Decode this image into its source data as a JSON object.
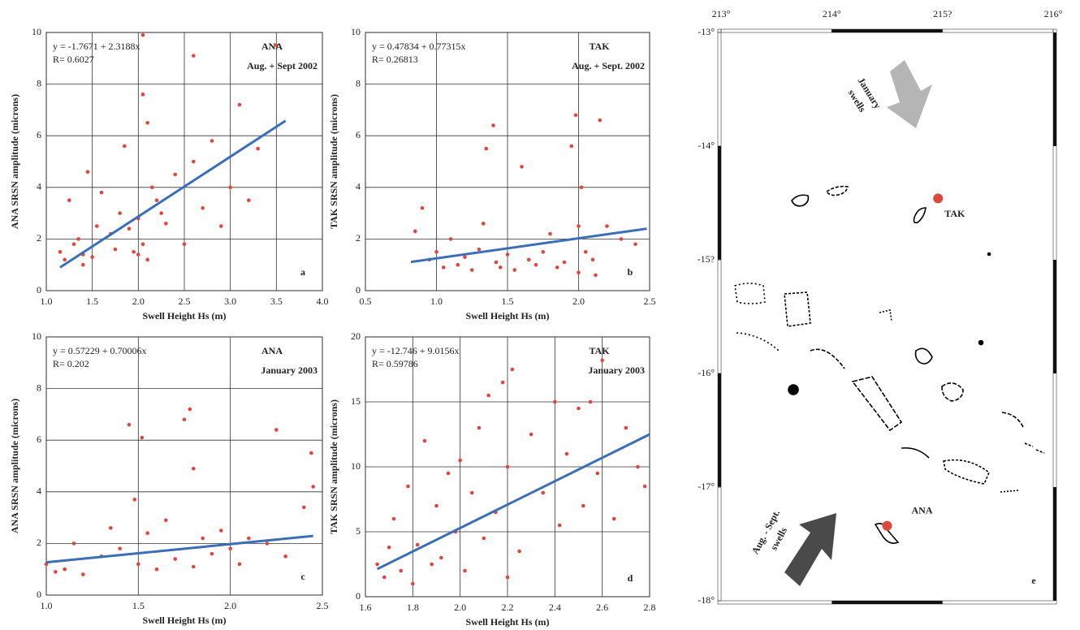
{
  "chart_data": [
    {
      "type": "scatter",
      "equation": "y = -1.7671 + 2.3188x",
      "r_text": "R= 0.6027",
      "site": "ANA",
      "period": "Aug. + Sept 2002",
      "panel_label": "a",
      "xlabel": "Swell Height Hs (m)",
      "ylabel": "ANA  SRSN amplitude  (microns)",
      "grid": true,
      "xlim": [
        1.0,
        4.0
      ],
      "xticks": [
        {
          "value": 1.0,
          "label": "1.0"
        },
        1.5,
        {
          "value": 2.0,
          "label": "2.0"
        },
        2.5,
        {
          "value": 3.0,
          "label": "3.0"
        },
        3.5,
        {
          "value": 4.0,
          "label": "4.0"
        }
      ],
      "ylim": [
        0,
        10
      ],
      "yticks": [
        0,
        2,
        4,
        6,
        8,
        10
      ],
      "series": [
        {
          "type": "scatter",
          "color": "#e0463c",
          "x": [
            1.15,
            1.2,
            1.25,
            1.3,
            1.35,
            1.4,
            1.45,
            1.5,
            1.55,
            1.6,
            1.7,
            1.75,
            1.8,
            1.85,
            1.9,
            1.95,
            2.0,
            2.05,
            2.05,
            2.1,
            2.1,
            2.15,
            2.2,
            2.3,
            2.4,
            2.5,
            2.6,
            2.7,
            2.8,
            2.9,
            3.0,
            3.1,
            3.2,
            3.3,
            3.5,
            2.05,
            2.6,
            1.4,
            2.0,
            2.25
          ],
          "values": [
            1.5,
            1.2,
            3.5,
            1.8,
            2.0,
            1.4,
            4.6,
            1.3,
            2.5,
            3.8,
            2.2,
            1.6,
            3.0,
            5.6,
            2.4,
            1.5,
            2.8,
            7.6,
            9.9,
            6.5,
            1.2,
            4.0,
            3.5,
            2.6,
            4.5,
            1.8,
            5.0,
            3.2,
            5.8,
            2.5,
            4.0,
            7.2,
            3.5,
            5.5,
            9.5,
            1.8,
            9.1,
            1.0,
            1.4,
            3.0
          ]
        },
        {
          "type": "line",
          "color": "#3a6fb8",
          "x": [
            1.15,
            3.6
          ],
          "values": [
            0.9,
            6.58
          ]
        }
      ]
    },
    {
      "type": "scatter",
      "equation": "y = 0.47834 + 0.77315x",
      "r_text": "R= 0.26813",
      "site": "TAK",
      "period": "Aug. + Sept. 2002",
      "panel_label": "b",
      "xlabel": "Swell Height Hs (m)",
      "ylabel": "TAK  SRSN amplitude (microns)",
      "grid": true,
      "xlim": [
        0.5,
        2.5
      ],
      "xticks": [
        0.5,
        {
          "value": 1.0,
          "label": "1.0"
        },
        1.5,
        {
          "value": 2.0,
          "label": "2.0"
        },
        2.5
      ],
      "ylim": [
        0,
        10
      ],
      "yticks": [
        0,
        2,
        4,
        6,
        8,
        10
      ],
      "series": [
        {
          "type": "scatter",
          "color": "#e0463c",
          "x": [
            0.85,
            0.9,
            0.95,
            1.0,
            1.05,
            1.1,
            1.15,
            1.2,
            1.25,
            1.3,
            1.35,
            1.4,
            1.42,
            1.45,
            1.5,
            1.55,
            1.6,
            1.65,
            1.7,
            1.75,
            1.8,
            1.85,
            1.9,
            1.95,
            1.98,
            2.0,
            2.0,
            2.02,
            2.05,
            2.1,
            2.15,
            2.2,
            2.3,
            2.4,
            1.33,
            2.12
          ],
          "values": [
            2.3,
            3.2,
            1.2,
            1.5,
            0.9,
            2.0,
            1.0,
            1.3,
            0.8,
            1.6,
            5.5,
            6.4,
            1.1,
            0.9,
            1.4,
            0.8,
            4.8,
            1.2,
            1.0,
            1.5,
            2.2,
            0.9,
            1.1,
            5.6,
            6.8,
            2.5,
            0.7,
            4.0,
            1.5,
            1.2,
            6.6,
            2.5,
            2.0,
            1.8,
            2.6,
            0.6
          ]
        },
        {
          "type": "line",
          "color": "#3a6fb8",
          "x": [
            0.82,
            2.48
          ],
          "values": [
            1.11,
            2.4
          ]
        }
      ]
    },
    {
      "type": "scatter",
      "equation": "y = 0.57229 + 0.70006x",
      "r_text": "R= 0.202",
      "site": "ANA",
      "period": "January 2003",
      "panel_label": "c",
      "xlabel": "Swell Height Hs (m)",
      "ylabel": "ANA  SRSN amplitude  (microns)",
      "grid": true,
      "xlim": [
        1.0,
        2.5
      ],
      "xticks": [
        {
          "value": 1.0,
          "label": "1.0"
        },
        1.5,
        {
          "value": 2.0,
          "label": "2.0"
        },
        2.5
      ],
      "ylim": [
        0,
        10
      ],
      "yticks": [
        0,
        2,
        4,
        6,
        8,
        10
      ],
      "series": [
        {
          "type": "scatter",
          "color": "#e0463c",
          "x": [
            1.0,
            1.05,
            1.1,
            1.15,
            1.2,
            1.3,
            1.35,
            1.4,
            1.45,
            1.48,
            1.5,
            1.52,
            1.55,
            1.6,
            1.65,
            1.7,
            1.75,
            1.78,
            1.8,
            1.8,
            1.85,
            1.9,
            1.95,
            2.0,
            2.05,
            2.1,
            2.2,
            2.25,
            2.3,
            2.4,
            2.44,
            2.45
          ],
          "values": [
            1.2,
            0.9,
            1.0,
            2.0,
            0.8,
            1.5,
            2.6,
            1.8,
            6.6,
            3.7,
            1.2,
            6.1,
            2.4,
            1.0,
            2.9,
            1.4,
            6.8,
            7.2,
            4.9,
            1.1,
            2.2,
            1.6,
            2.5,
            1.8,
            1.2,
            2.2,
            2.0,
            6.4,
            1.5,
            3.4,
            5.5,
            4.2
          ]
        },
        {
          "type": "line",
          "color": "#3a6fb8",
          "x": [
            1.0,
            2.45
          ],
          "values": [
            1.27,
            2.29
          ]
        }
      ]
    },
    {
      "type": "scatter",
      "equation": "y = -12.746 + 9.0156x",
      "r_text": "R= 0.59786",
      "site": "TAK",
      "period": "January 2003",
      "panel_label": "d",
      "xlabel": "Swell Height Hs (m)",
      "ylabel": "TAK  SRSN amplitude (microns)",
      "grid": true,
      "xlim": [
        1.6,
        2.8
      ],
      "xticks": [
        1.6,
        1.8,
        {
          "value": 2.0,
          "label": "2.0"
        },
        2.2,
        2.4,
        2.6,
        2.8
      ],
      "ylim": [
        0,
        20
      ],
      "yticks": [
        0,
        5,
        10,
        15,
        20
      ],
      "series": [
        {
          "type": "scatter",
          "color": "#e0463c",
          "x": [
            1.65,
            1.68,
            1.7,
            1.72,
            1.75,
            1.78,
            1.8,
            1.82,
            1.85,
            1.88,
            1.9,
            1.92,
            1.95,
            1.98,
            2.0,
            2.02,
            2.05,
            2.08,
            2.1,
            2.12,
            2.15,
            2.18,
            2.2,
            2.22,
            2.25,
            2.3,
            2.35,
            2.4,
            2.42,
            2.45,
            2.5,
            2.52,
            2.55,
            2.58,
            2.6,
            2.65,
            2.7,
            2.75,
            2.78,
            2.2
          ],
          "values": [
            2.5,
            1.5,
            3.8,
            6.0,
            2.0,
            8.5,
            1.0,
            4.0,
            12.0,
            2.5,
            7.0,
            3.0,
            9.5,
            5.0,
            10.5,
            2.0,
            8.0,
            13.0,
            4.5,
            15.5,
            6.5,
            16.5,
            10.0,
            17.5,
            3.5,
            12.5,
            8.0,
            15.0,
            5.5,
            11.0,
            14.5,
            7.0,
            15.0,
            9.5,
            18.2,
            6.0,
            13.0,
            10.0,
            8.5,
            1.5
          ]
        },
        {
          "type": "line",
          "color": "#3a6fb8",
          "x": [
            1.65,
            2.8
          ],
          "values": [
            2.13,
            12.5
          ]
        }
      ]
    },
    {
      "type": "map",
      "panel_label": "e",
      "xlim": [
        213,
        216
      ],
      "xticks": [
        {
          "value": 213,
          "label": "213°"
        },
        {
          "value": 214,
          "label": "214°"
        },
        {
          "value": 215,
          "label": "215?"
        },
        {
          "value": 216,
          "label": "216°"
        }
      ],
      "ylim": [
        -18,
        -13
      ],
      "yticks": [
        {
          "value": -13,
          "label": "-13°"
        },
        {
          "value": -14,
          "label": "-14°"
        },
        {
          "value": -15,
          "label": "-15?"
        },
        {
          "value": -16,
          "label": "-16°"
        },
        {
          "value": -17,
          "label": "-17°"
        },
        {
          "value": -18,
          "label": "-18°"
        }
      ],
      "points": [
        {
          "name": "TAK",
          "x": 214.96,
          "y": -14.46,
          "color": "#e0463c"
        },
        {
          "name": "ANA",
          "x": 214.5,
          "y": -17.34,
          "color": "#e0463c"
        }
      ],
      "annotations": [
        [
          "January",
          "swells"
        ],
        [
          "Aug. - Sept.",
          "swells"
        ]
      ]
    }
  ]
}
